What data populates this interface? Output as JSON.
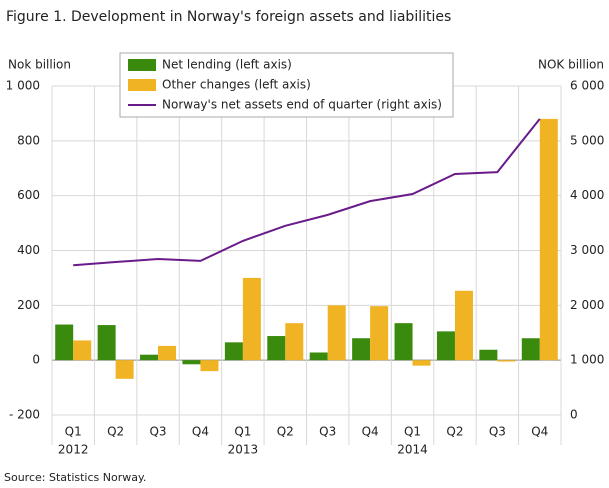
{
  "chart_data": {
    "type": "bar",
    "title": "Figure 1. Development in Norway's foreign assets and liabilities",
    "y_axis_label": "Nok billion",
    "y2_axis_label": "NOK billion",
    "source": "Source: Statistics Norway.",
    "categories": [
      "Q1",
      "Q2",
      "Q3",
      "Q4",
      "Q1",
      "Q2",
      "Q3",
      "Q4",
      "Q1",
      "Q2",
      "Q3",
      "Q4"
    ],
    "year_labels": [
      "2012",
      null,
      null,
      null,
      "2013",
      null,
      null,
      null,
      "2014",
      null,
      null,
      null
    ],
    "series": [
      {
        "name": "Net lending (left axis)",
        "color": "#3a8a0e",
        "type": "bar",
        "values": [
          130,
          128,
          20,
          -15,
          65,
          88,
          28,
          80,
          135,
          105,
          38,
          80
        ]
      },
      {
        "name": "Other changes (left axis)",
        "color": "#f0b323",
        "type": "bar",
        "values": [
          72,
          -68,
          52,
          -40,
          300,
          135,
          200,
          197,
          -20,
          253,
          -5,
          880
        ]
      },
      {
        "name": "Norway's net assets end of quarter (right axis)",
        "color": "#6a1b8a",
        "type": "line",
        "axis": "y2",
        "values": [
          2730,
          2790,
          2845,
          2810,
          3175,
          3450,
          3650,
          3900,
          4030,
          4395,
          4430,
          5400
        ]
      }
    ],
    "ylim": [
      -200,
      1000
    ],
    "yticks": [
      {
        "value": -200,
        "label": "- 200"
      },
      0,
      200,
      400,
      600,
      800,
      {
        "value": 1000,
        "label": "1 000"
      }
    ],
    "y2lim": [
      0,
      6000
    ],
    "y2ticks": [
      0,
      {
        "value": 1000,
        "label": "1 000"
      },
      {
        "value": 2000,
        "label": "2 000"
      },
      {
        "value": 3000,
        "label": "3 000"
      },
      {
        "value": 4000,
        "label": "4 000"
      },
      {
        "value": 5000,
        "label": "5 000"
      },
      {
        "value": 6000,
        "label": "6 000"
      }
    ],
    "grid": true,
    "legend": "upper center"
  }
}
